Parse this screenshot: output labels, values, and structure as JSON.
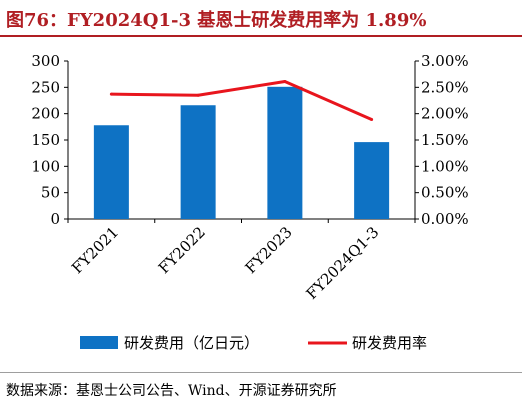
{
  "header": {
    "title": "图76：FY2024Q1-3 基恩士研发费用率为 1.89%"
  },
  "footer": {
    "source": "数据来源：基恩士公司公告、Wind、开源证券研究所"
  },
  "colors": {
    "bar": "#0e72c4",
    "line": "#e8151d",
    "title": "#b01e23"
  },
  "chart_data": {
    "type": "bar+line",
    "title": "",
    "categories": [
      "FY2021",
      "FY2022",
      "FY2023",
      "FY2024Q1-3"
    ],
    "series": [
      {
        "name": "研发费用（亿日元）",
        "type": "bar",
        "axis": "left",
        "values": [
          178,
          216,
          251,
          146
        ]
      },
      {
        "name": "研发费用率",
        "type": "line",
        "axis": "right",
        "values": [
          2.37,
          2.35,
          2.61,
          1.89
        ]
      }
    ],
    "left_axis": {
      "ylim": [
        0,
        300
      ],
      "ticks": [
        "0",
        "50",
        "100",
        "150",
        "200",
        "250",
        "300"
      ]
    },
    "right_axis": {
      "ylim": [
        0,
        3
      ],
      "ticks": [
        "0.00%",
        "0.50%",
        "1.00%",
        "1.50%",
        "2.00%",
        "2.50%",
        "3.00%"
      ]
    },
    "xlabel": "",
    "ylabel": "",
    "grid": false,
    "legend": "bottom"
  }
}
